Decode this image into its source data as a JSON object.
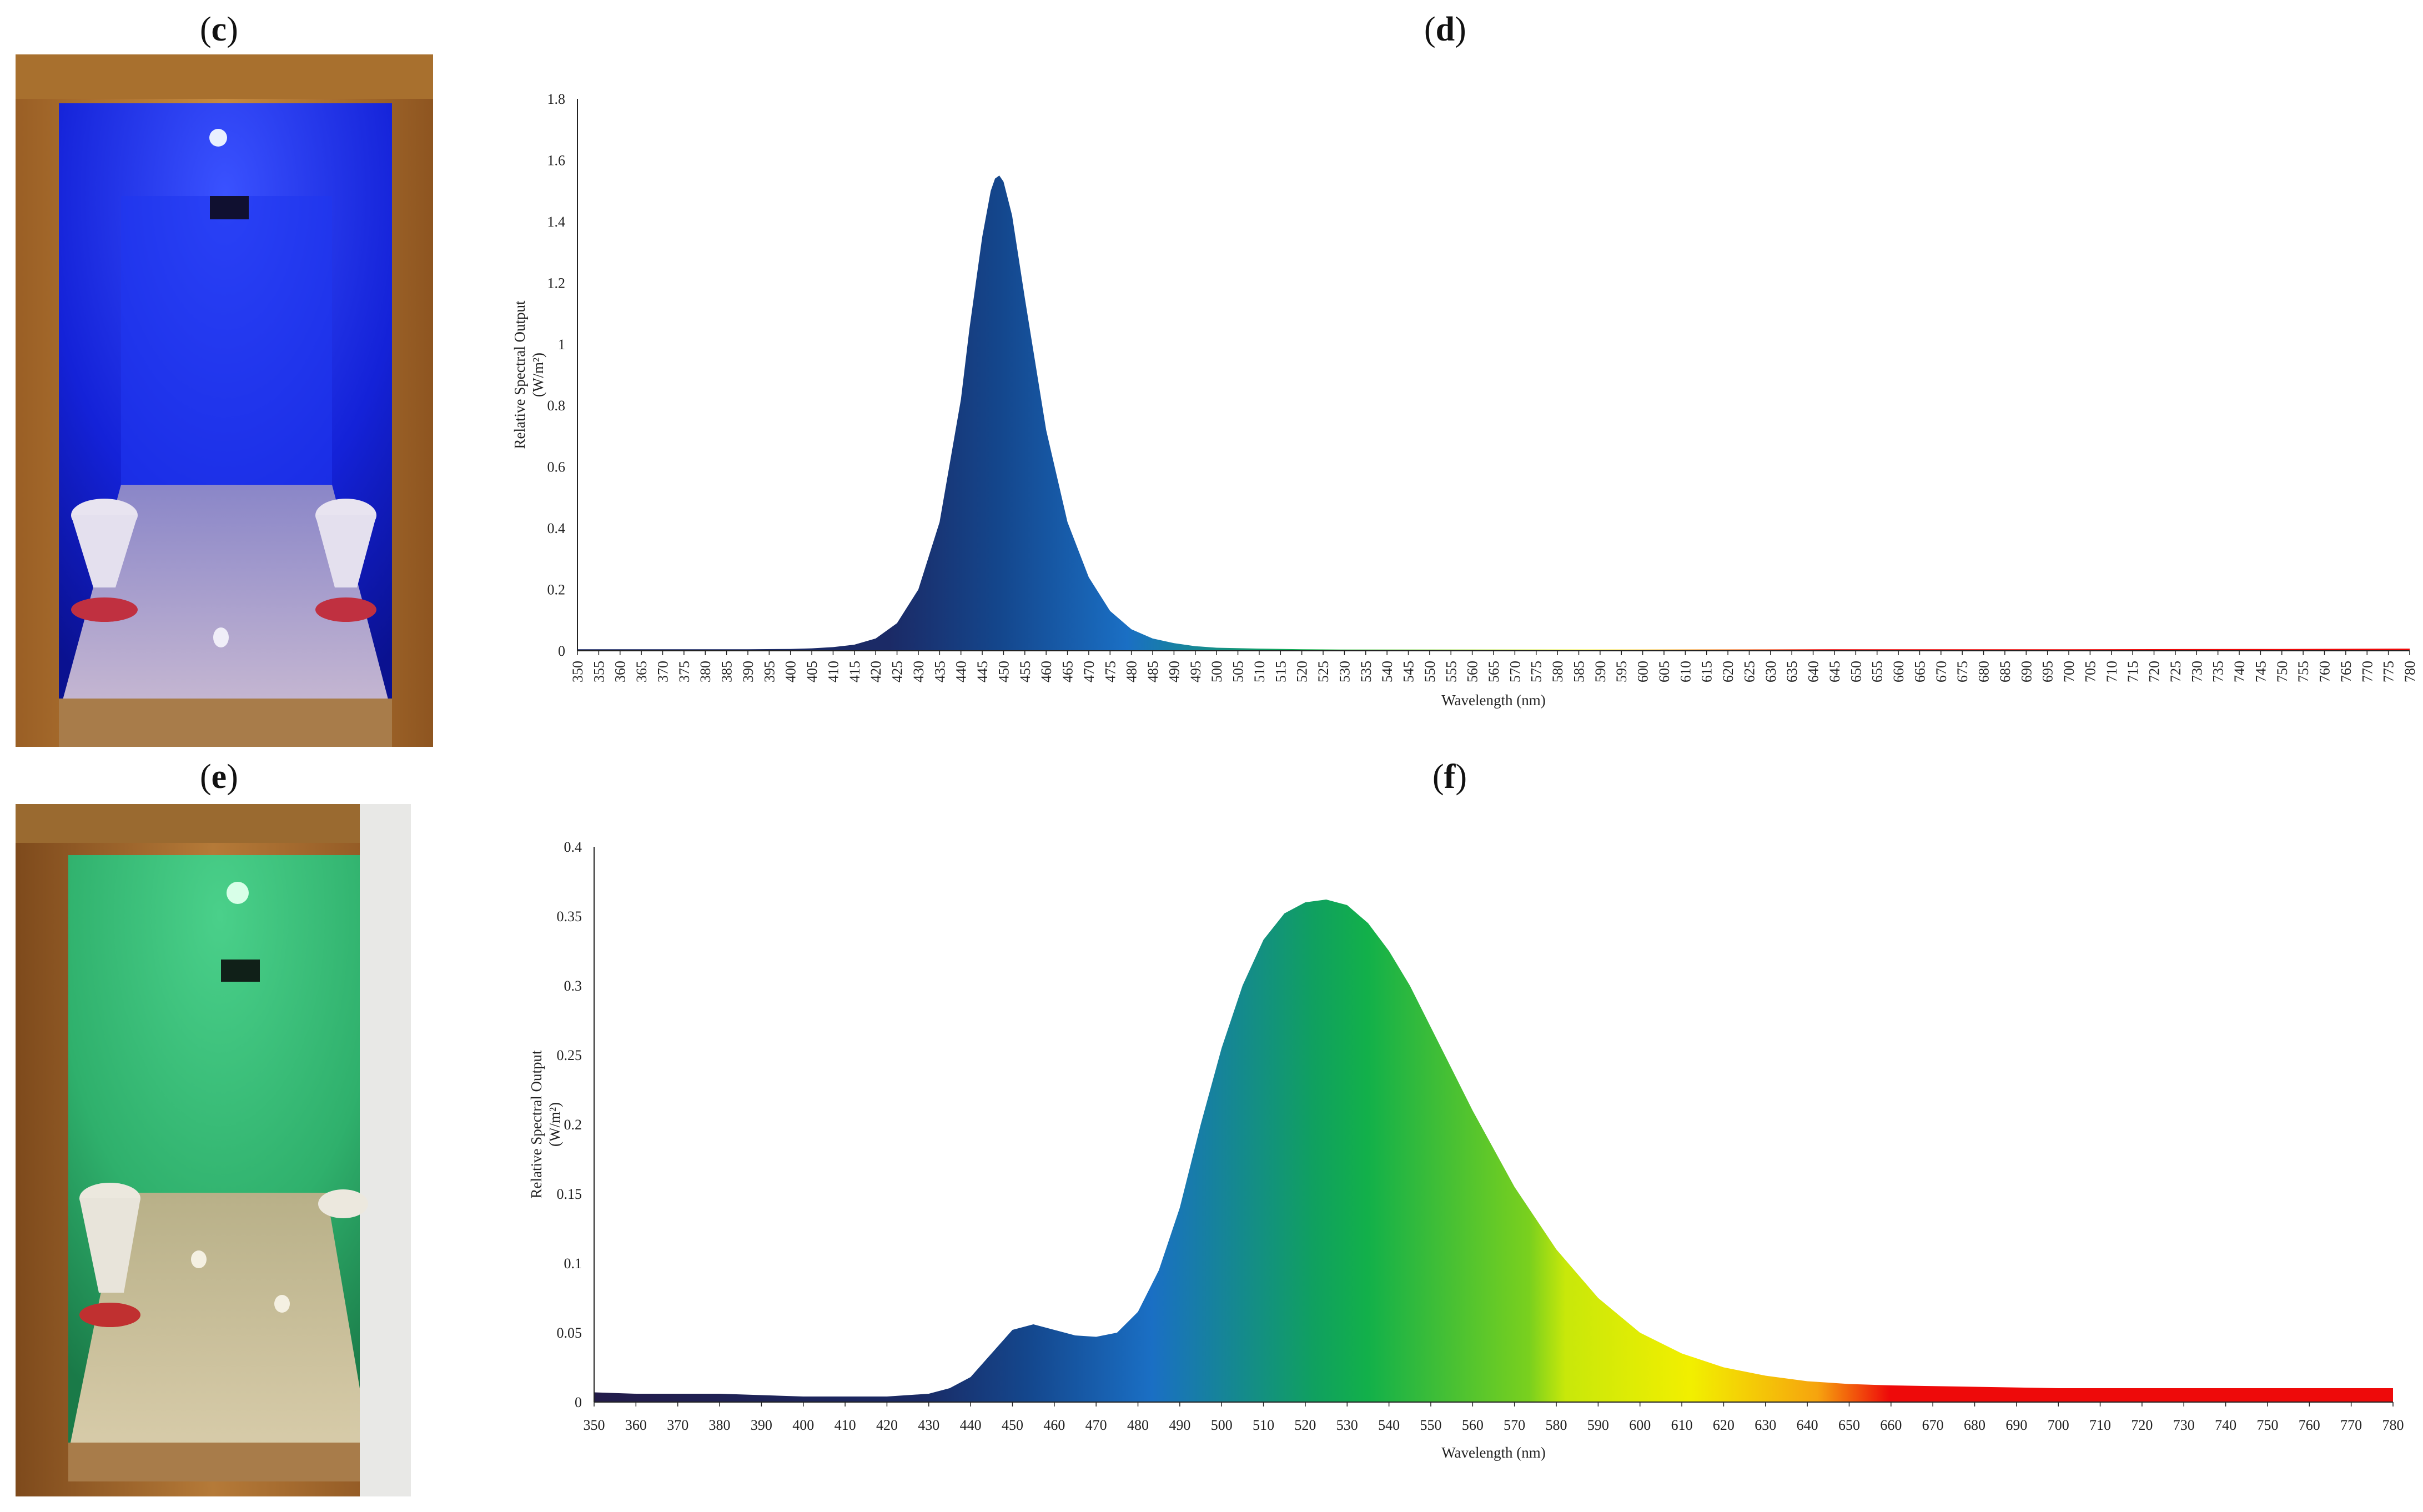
{
  "panels": {
    "c": "c",
    "d": "d",
    "e": "e",
    "f": "f"
  },
  "colors": {
    "axis": "#222222",
    "blue_fill_dark": "#1b2a66",
    "blue_fill_mid": "#14468c",
    "blue_fill_light": "#1a6fc4",
    "green": "#12b04a",
    "yellow": "#f2ef00",
    "red": "#ee0a0a",
    "photo_blue_light": "#1a2cff",
    "photo_green_light": "#2fb870",
    "wood": "#b87a34"
  },
  "chart_data": [
    {
      "panel": "d",
      "type": "area",
      "xlabel": "Wavelength (nm)",
      "ylabel_line1": "Relative Spectral Output",
      "ylabel_line2": "(W/m²)",
      "ylim": [
        0,
        1.8
      ],
      "yticks": [
        "0",
        "0.2",
        "0.4",
        "0.6",
        "0.8",
        "1",
        "1.2",
        "1.4",
        "1.6",
        "1.8"
      ],
      "xlim": [
        350,
        780
      ],
      "xticks": [
        350,
        355,
        360,
        365,
        370,
        375,
        380,
        385,
        390,
        395,
        400,
        405,
        410,
        415,
        420,
        425,
        430,
        435,
        440,
        445,
        450,
        455,
        460,
        465,
        470,
        475,
        480,
        485,
        490,
        495,
        500,
        505,
        510,
        515,
        520,
        525,
        530,
        535,
        540,
        545,
        550,
        555,
        560,
        565,
        570,
        575,
        580,
        585,
        590,
        595,
        600,
        605,
        610,
        615,
        620,
        625,
        630,
        635,
        640,
        645,
        650,
        655,
        660,
        665,
        670,
        675,
        680,
        685,
        690,
        695,
        700,
        705,
        710,
        715,
        720,
        725,
        730,
        735,
        740,
        745,
        750,
        755,
        760,
        765,
        770,
        775,
        780
      ],
      "x": [
        350,
        360,
        370,
        380,
        390,
        400,
        405,
        410,
        415,
        420,
        425,
        430,
        435,
        440,
        442,
        445,
        447,
        448,
        449,
        450,
        452,
        455,
        460,
        465,
        470,
        475,
        480,
        485,
        490,
        495,
        500,
        510,
        520,
        530,
        540,
        560,
        580,
        600,
        650,
        700,
        750,
        780
      ],
      "y": [
        0.005,
        0.005,
        0.005,
        0.005,
        0.005,
        0.006,
        0.008,
        0.012,
        0.02,
        0.04,
        0.09,
        0.2,
        0.42,
        0.82,
        1.05,
        1.35,
        1.5,
        1.54,
        1.55,
        1.53,
        1.42,
        1.15,
        0.72,
        0.42,
        0.24,
        0.13,
        0.07,
        0.04,
        0.025,
        0.015,
        0.01,
        0.007,
        0.005,
        0.004,
        0.004,
        0.004,
        0.004,
        0.004,
        0.005,
        0.005,
        0.006,
        0.007
      ]
    },
    {
      "panel": "f",
      "type": "area",
      "xlabel": "Wavelength (nm)",
      "ylabel_line1": "Relative Spectral Output",
      "ylabel_line2": "(W/m²)",
      "ylim": [
        0,
        0.4
      ],
      "yticks": [
        "0",
        "0.05",
        "0.1",
        "0.15",
        "0.2",
        "0.25",
        "0.3",
        "0.35",
        "0.4"
      ],
      "xlim": [
        350,
        780
      ],
      "xticks": [
        350,
        360,
        370,
        380,
        390,
        400,
        410,
        420,
        430,
        440,
        450,
        460,
        470,
        480,
        490,
        500,
        510,
        520,
        530,
        540,
        550,
        560,
        570,
        580,
        590,
        600,
        610,
        620,
        630,
        640,
        650,
        660,
        670,
        680,
        690,
        700,
        710,
        720,
        730,
        740,
        750,
        760,
        770,
        780
      ],
      "x": [
        350,
        360,
        370,
        380,
        390,
        400,
        410,
        420,
        430,
        435,
        440,
        445,
        450,
        455,
        460,
        465,
        470,
        475,
        480,
        485,
        490,
        495,
        500,
        505,
        510,
        515,
        520,
        525,
        530,
        535,
        540,
        545,
        550,
        555,
        560,
        570,
        580,
        590,
        600,
        610,
        620,
        630,
        640,
        650,
        660,
        680,
        700,
        720,
        740,
        760,
        780
      ],
      "y": [
        0.007,
        0.006,
        0.006,
        0.006,
        0.005,
        0.004,
        0.004,
        0.004,
        0.006,
        0.01,
        0.018,
        0.035,
        0.052,
        0.056,
        0.052,
        0.048,
        0.047,
        0.05,
        0.065,
        0.095,
        0.14,
        0.2,
        0.255,
        0.3,
        0.333,
        0.352,
        0.36,
        0.362,
        0.358,
        0.345,
        0.325,
        0.3,
        0.27,
        0.24,
        0.21,
        0.155,
        0.11,
        0.075,
        0.05,
        0.035,
        0.025,
        0.019,
        0.015,
        0.013,
        0.012,
        0.011,
        0.01,
        0.01,
        0.01,
        0.01,
        0.01
      ]
    }
  ]
}
